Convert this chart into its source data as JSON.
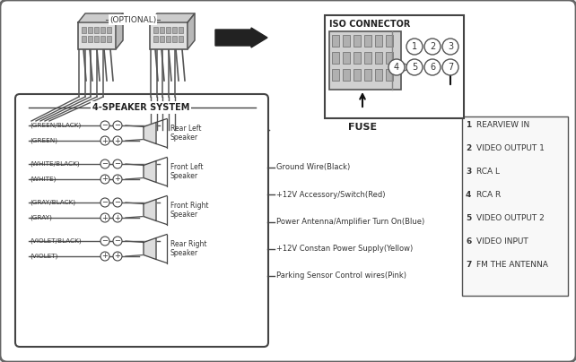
{
  "bg_outer": "#e8e8e8",
  "bg_inner": "#ffffff",
  "title_4speaker": "4-SPEAKER SYSTEM",
  "speaker_labels": [
    [
      "(GREEN/BLACK)",
      "(GREEN)"
    ],
    [
      "(WHITE/BLACK)",
      "(WHITE)"
    ],
    [
      "(GRAY/BLACK)",
      "(GRAY)"
    ],
    [
      "(VIOLET/BLACK)",
      "(VIOLET)"
    ]
  ],
  "speaker_names": [
    "Rear Left\nSpeaker",
    "Front Left\nSpeaker",
    "Front Right\nSpeaker",
    "Rear Right\nSpeaker"
  ],
  "wire_labels": [
    "Ground Wire(Black)",
    "+12V Accessory/Switch(Red)",
    "Power Antenna/Amplifier Turn On(Blue)",
    "+12V Constan Power Supply(Yellow)",
    "Parking Sensor Control wires(Pink)"
  ],
  "iso_title": "ISO CONNECTOR",
  "iso_numbers_top": [
    "3",
    "2",
    "1"
  ],
  "iso_numbers_bot": [
    "4",
    "5",
    "6",
    "7"
  ],
  "fuse_label": "FUSE",
  "connector_list": [
    [
      "1",
      "REARVIEW IN"
    ],
    [
      "2",
      "VIDEO OUTPUT 1"
    ],
    [
      "3",
      "RCA L"
    ],
    [
      "4",
      "RCA R"
    ],
    [
      "5",
      "VIDEO OUTPUT 2"
    ],
    [
      "6",
      "VIDEO INPUT"
    ],
    [
      "7",
      "FM THE ANTENNA"
    ]
  ],
  "optional_label": "(OPTIONAL)"
}
